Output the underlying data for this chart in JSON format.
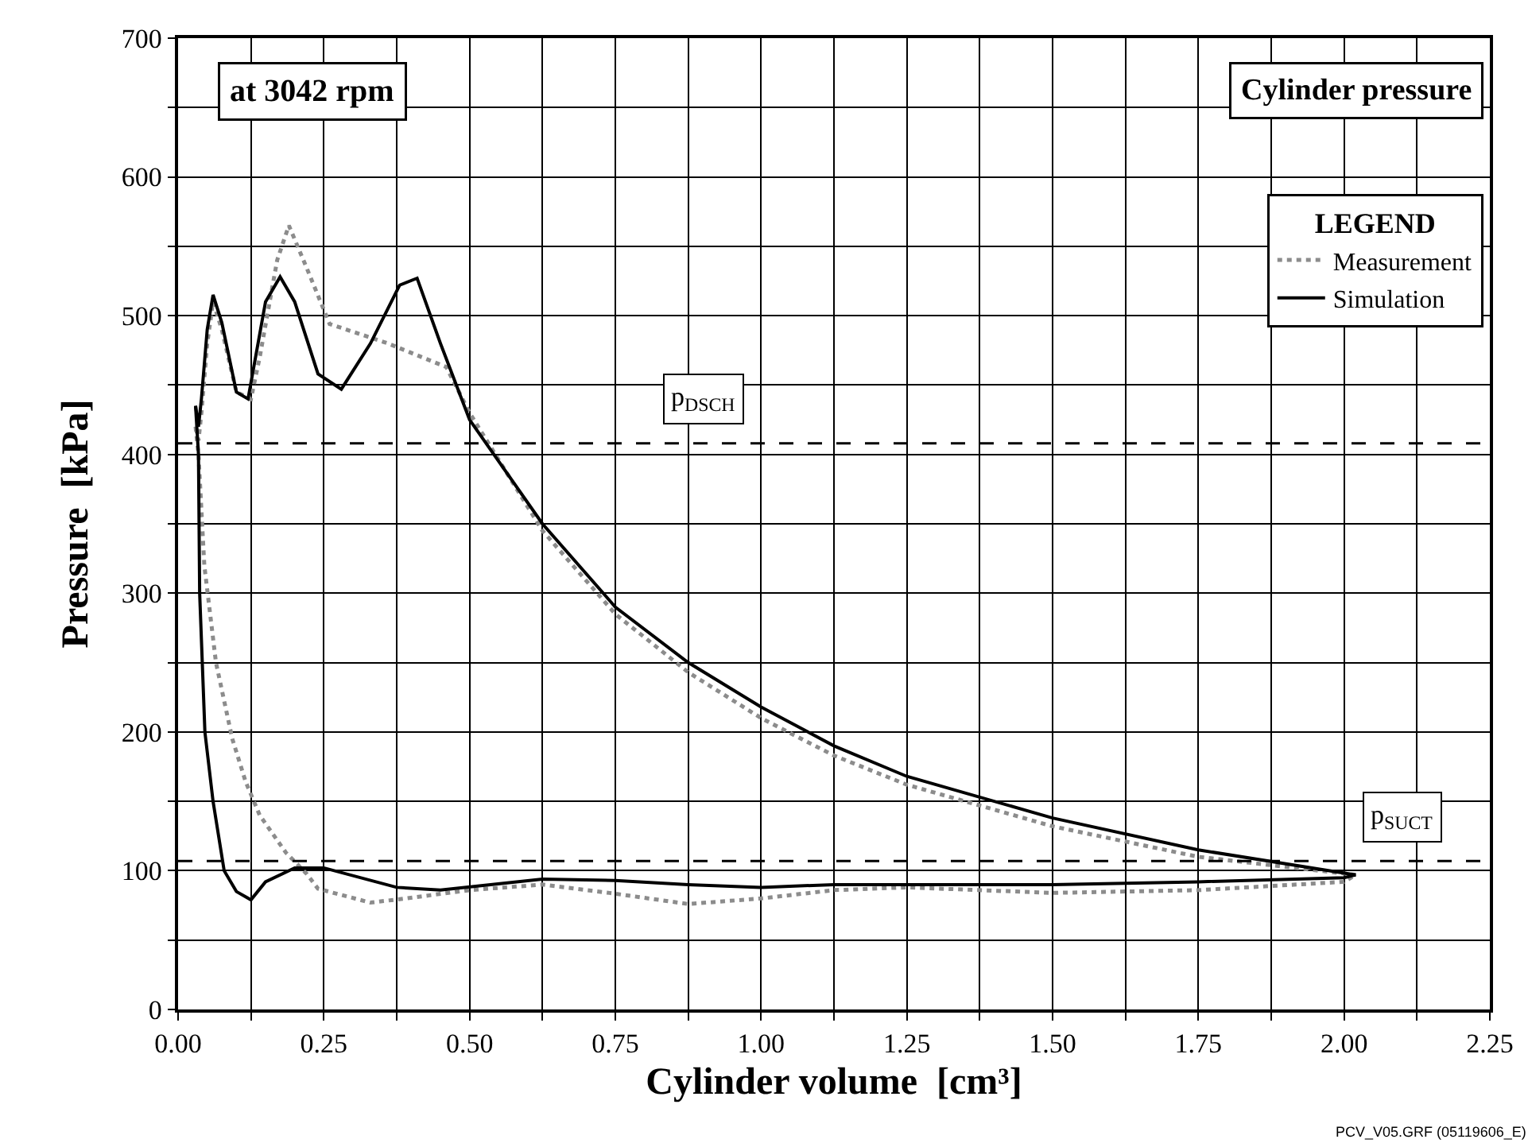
{
  "chart_data": {
    "type": "line",
    "title": "at 3042 rpm",
    "xlabel": "Cylinder volume  [cm³]",
    "ylabel": "Pressure  [kPa]",
    "legend_title": "LEGEND",
    "legend": "top right",
    "grid": true,
    "marker": "none",
    "xlim": [
      0,
      2.25
    ],
    "xticks": [
      {
        "value": 0,
        "label": "0.00"
      },
      {
        "value": 0.125,
        "label": null
      },
      {
        "value": 0.25,
        "label": "0.25"
      },
      {
        "value": 0.375,
        "label": null
      },
      {
        "value": 0.5,
        "label": "0.50"
      },
      {
        "value": 0.625,
        "label": null
      },
      {
        "value": 0.75,
        "label": "0.75"
      },
      {
        "value": 0.875,
        "label": null
      },
      {
        "value": 1,
        "label": "1.00"
      },
      {
        "value": 1.125,
        "label": null
      },
      {
        "value": 1.25,
        "label": "1.25"
      },
      {
        "value": 1.375,
        "label": null
      },
      {
        "value": 1.5,
        "label": "1.50"
      },
      {
        "value": 1.625,
        "label": null
      },
      {
        "value": 1.75,
        "label": "1.75"
      },
      {
        "value": 1.875,
        "label": null
      },
      {
        "value": 2,
        "label": "2.00"
      },
      {
        "value": 2.125,
        "label": null
      },
      {
        "value": 2.25,
        "label": "2.25"
      }
    ],
    "ylim": [
      0,
      700
    ],
    "yticks": [
      0,
      {
        "value": 50,
        "label": null
      },
      100,
      {
        "value": 150,
        "label": null
      },
      200,
      {
        "value": 250,
        "label": null
      },
      300,
      {
        "value": 350,
        "label": null
      },
      400,
      {
        "value": 450,
        "label": null
      },
      500,
      {
        "value": 550,
        "label": null
      },
      600,
      {
        "value": 650,
        "label": null
      },
      700
    ],
    "series": [
      {
        "name": "Measurement",
        "color": "#8c8c8c",
        "line_style": "dotted",
        "x": [
          2.02,
          1.75,
          1.5,
          1.25,
          1.125,
          1,
          0.875,
          0.75,
          0.625,
          0.5,
          0.46,
          0.36,
          0.26,
          0.22,
          0.19,
          0.17,
          0.14,
          0.125,
          0.1,
          0.075,
          0.06,
          0.05,
          0.04,
          0.035,
          0.03
        ],
        "values": [
          97,
          110,
          132,
          162,
          183,
          210,
          243,
          285,
          345,
          430,
          463,
          480,
          494,
          535,
          565,
          540,
          470,
          440,
          445,
          490,
          510,
          480,
          430,
          410,
          420
        ]
      },
      {
        "color": "#8c8c8c",
        "line_style": "dotted",
        "x": [
          0.03,
          0.035,
          0.045,
          0.065,
          0.093,
          0.116,
          0.14,
          0.185,
          0.22,
          0.24,
          0.33,
          0.39,
          0.5,
          0.625,
          0.74,
          0.875,
          1,
          1.125,
          1.25,
          1.5,
          1.75,
          2,
          2.02
        ],
        "values": [
          420,
          400,
          320,
          250,
          195,
          164,
          140,
          113,
          98,
          87,
          77,
          80,
          86,
          90,
          84,
          76,
          80,
          86,
          88,
          84,
          86,
          92,
          97
        ]
      },
      {
        "name": "Simulation",
        "color": "#000000",
        "line_style": "solid",
        "x": [
          2.02,
          1.75,
          1.5,
          1.25,
          1.125,
          1,
          0.875,
          0.75,
          0.625,
          0.5,
          0.45,
          0.41,
          0.38,
          0.33,
          0.28,
          0.24,
          0.2,
          0.175,
          0.15,
          0.12,
          0.1,
          0.075,
          0.06,
          0.05,
          0.04,
          0.035,
          0.03
        ],
        "values": [
          97,
          115,
          138,
          168,
          190,
          218,
          250,
          290,
          350,
          425,
          480,
          527,
          522,
          480,
          447,
          458,
          510,
          528,
          510,
          440,
          445,
          495,
          515,
          490,
          440,
          420,
          435
        ]
      },
      {
        "color": "#000000",
        "line_style": "solid",
        "x": [
          0.03,
          0.035,
          0.037,
          0.046,
          0.06,
          0.079,
          0.1,
          0.125,
          0.15,
          0.2,
          0.25,
          0.375,
          0.45,
          0.625,
          0.75,
          0.875,
          1,
          1.125,
          1.25,
          1.5,
          1.75,
          2,
          2.02
        ],
        "values": [
          435,
          400,
          300,
          200,
          150,
          100,
          85,
          79,
          92,
          102,
          102,
          88,
          86,
          94,
          93,
          90,
          88,
          90,
          90,
          90,
          92,
          95,
          97
        ]
      }
    ],
    "ref_lines": [
      {
        "axis": "y",
        "value": 408,
        "label": "p$_{DSCH}$",
        "line_style": "dashed",
        "color": "#000000"
      },
      {
        "axis": "y",
        "value": 107,
        "label": "p$_{SUCT}$",
        "line_style": "dashed",
        "color": "#000000"
      }
    ],
    "annotations": [
      "Cylinder pressure",
      "PCV_V05.GRF (05119606_E)"
    ]
  }
}
